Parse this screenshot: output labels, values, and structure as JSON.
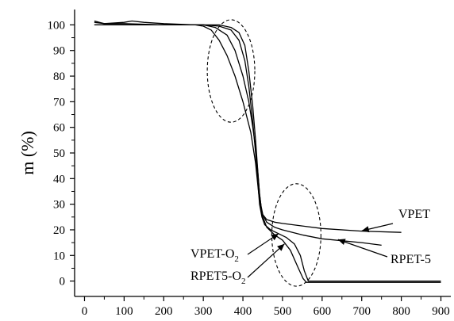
{
  "chart_data": {
    "type": "line",
    "title": "",
    "xlabel": "",
    "ylabel": "m (%)",
    "xlim": [
      -25,
      925
    ],
    "ylim": [
      -6,
      106
    ],
    "x_ticks": [
      0,
      100,
      200,
      300,
      400,
      500,
      600,
      700,
      800,
      900
    ],
    "y_ticks": [
      0,
      10,
      20,
      30,
      40,
      50,
      60,
      70,
      80,
      90,
      100
    ],
    "x_tick_labels": [
      "0",
      "100",
      "200",
      "300",
      "400",
      "500",
      "600",
      "700",
      "800",
      "900"
    ],
    "y_tick_labels": [
      "0",
      "10",
      "20",
      "30",
      "40",
      "50",
      "60",
      "70",
      "80",
      "90",
      "100"
    ],
    "grid": false,
    "series": [
      {
        "name": "VPET",
        "x": [
          25,
          50,
          100,
          200,
          300,
          340,
          370,
          390,
          405,
          415,
          425,
          432,
          438,
          442,
          446,
          450,
          460,
          480,
          500,
          550,
          600,
          700,
          800
        ],
        "y": [
          100,
          100,
          100,
          100,
          100,
          100,
          99,
          97,
          92,
          82,
          68,
          55,
          42,
          34,
          29,
          26,
          24,
          23,
          22.5,
          21.5,
          20.5,
          19.5,
          19
        ]
      },
      {
        "name": "RPET-5",
        "x": [
          25,
          50,
          100,
          200,
          300,
          330,
          360,
          380,
          400,
          415,
          425,
          432,
          438,
          442,
          446,
          450,
          460,
          480,
          500,
          550,
          600,
          700,
          750
        ],
        "y": [
          101,
          100.5,
          100.5,
          100,
          100,
          99,
          96,
          90,
          80,
          70,
          60,
          52,
          42,
          34,
          29,
          26,
          23,
          21,
          20,
          18,
          16.5,
          15,
          14
        ]
      },
      {
        "name": "VPET-O2",
        "x": [
          25,
          50,
          100,
          200,
          300,
          340,
          370,
          390,
          405,
          415,
          425,
          432,
          438,
          442,
          448,
          455,
          470,
          490,
          510,
          530,
          545,
          555,
          565,
          580,
          700,
          800,
          900
        ],
        "y": [
          100,
          100,
          100,
          100,
          100,
          99.5,
          98,
          94,
          86,
          76,
          62,
          50,
          38,
          30,
          25,
          22,
          20,
          18.5,
          17,
          14.5,
          10,
          4,
          0,
          0,
          0,
          0,
          0
        ]
      },
      {
        "name": "RPET5-O2",
        "x": [
          25,
          50,
          100,
          120,
          150,
          200,
          280,
          300,
          320,
          340,
          360,
          380,
          400,
          420,
          432,
          440,
          448,
          460,
          480,
          500,
          520,
          540,
          552,
          560,
          570,
          600,
          700,
          900
        ],
        "y": [
          101.5,
          100.5,
          101,
          101.5,
          101,
          100.5,
          100,
          99.5,
          98,
          94,
          88,
          80,
          70,
          58,
          46,
          34,
          26,
          21,
          18,
          16,
          12,
          5,
          1,
          -0.5,
          -0.5,
          -0.5,
          -0.5,
          -0.5
        ]
      }
    ],
    "annotations": [
      {
        "id": "vpet",
        "text": "VPET",
        "sub": "",
        "points_to": [
          700,
          19.6
        ]
      },
      {
        "id": "rpet5",
        "text": "RPET-5",
        "sub": "",
        "points_to": [
          640,
          16.2
        ]
      },
      {
        "id": "vpeto2",
        "text": "VPET-O",
        "sub": "2",
        "points_to": [
          490,
          18.5
        ]
      },
      {
        "id": "rpet5o2",
        "text": "RPET5-O",
        "sub": "2",
        "points_to": [
          505,
          14.5
        ]
      }
    ],
    "highlight_ellipses": [
      {
        "center": [
          370,
          82
        ],
        "radius": [
          60,
          20
        ]
      },
      {
        "center": [
          535,
          18
        ],
        "radius": [
          62,
          20
        ]
      }
    ]
  }
}
